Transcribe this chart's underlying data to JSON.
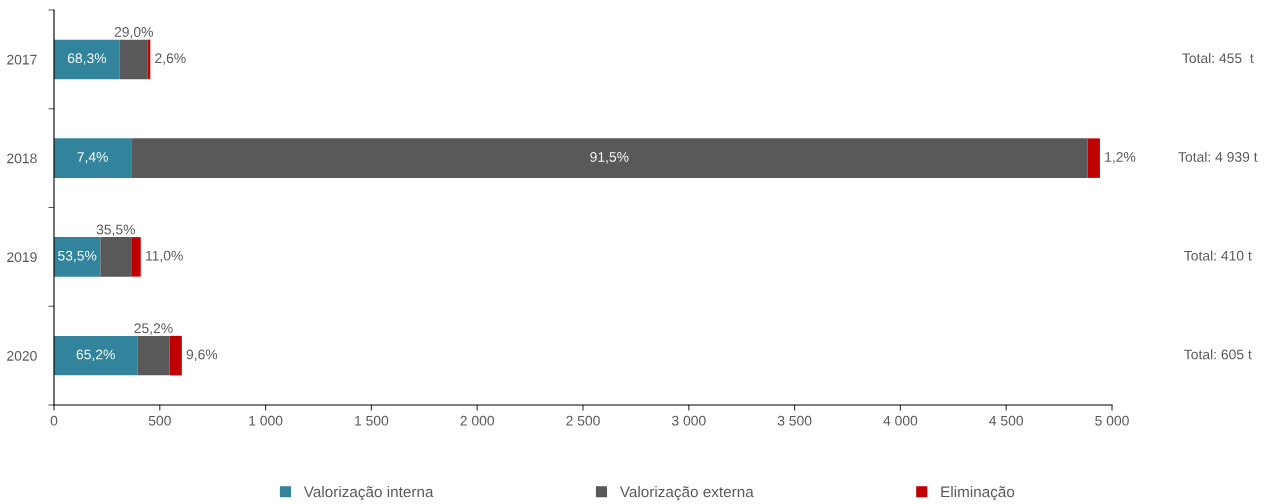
{
  "chart_data": {
    "type": "bar",
    "orientation": "horizontal",
    "stacked": true,
    "categories": [
      "2017",
      "2018",
      "2019",
      "2020"
    ],
    "series": [
      {
        "name": "Valorização interna",
        "color": "#31849b",
        "values": [
          311,
          365,
          219,
          394
        ]
      },
      {
        "name": "Valorização externa",
        "color": "#595959",
        "values": [
          132,
          4519,
          146,
          152
        ]
      },
      {
        "name": "Eliminação",
        "color": "#c00000",
        "values": [
          12,
          59,
          45,
          58
        ]
      }
    ],
    "annotations": [
      {
        "text": "68,3%",
        "x": 311,
        "y": "2017"
      },
      {
        "text": "29,0%",
        "x": 443,
        "y": "2017"
      },
      {
        "text": "2,6%",
        "x": 455,
        "y": "2017"
      },
      {
        "text": "7,4%",
        "x": 365,
        "y": "2018"
      },
      "91,5%",
      {
        "text": "1,2%",
        "x": 4943,
        "y": "2018"
      },
      {
        "text": "53,5%",
        "x": 219,
        "y": "2019"
      },
      {
        "text": "35,5%",
        "x": 365,
        "y": "2019"
      },
      {
        "text": "11,0%",
        "x": 410,
        "y": "2019"
      },
      {
        "text": "65,2%",
        "x": 394,
        "y": "2020"
      },
      {
        "text": "25,2%",
        "x": 546,
        "y": "2020"
      },
      {
        "text": "9,6%",
        "x": 604,
        "y": "2020"
      },
      "Total: 455  t",
      "Total: 4 939 t",
      "Total: 410 t",
      "Total: 605 t"
    ],
    "xlim": [
      0,
      5000
    ],
    "xticks": [
      0,
      500,
      {
        "value": 1000,
        "label": "1 000"
      },
      {
        "value": 1500,
        "label": "1 500"
      },
      {
        "value": 2000,
        "label": "2 000"
      },
      {
        "value": 2500,
        "label": "2 500"
      },
      {
        "value": 3000,
        "label": "3 000"
      },
      {
        "value": 3500,
        "label": "3 500"
      },
      {
        "value": 4000,
        "label": "4 000"
      },
      {
        "value": 4500,
        "label": "4 500"
      },
      {
        "value": 5000,
        "label": "5 000"
      }
    ],
    "grid": false,
    "legend": "bottom",
    "marker": "square"
  }
}
